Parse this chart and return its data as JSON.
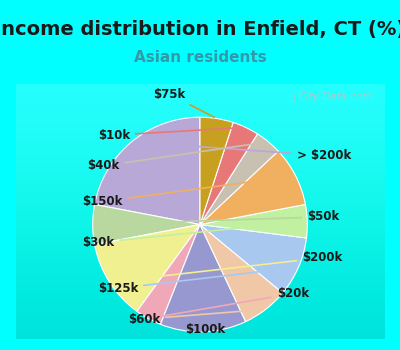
{
  "title": "Income distribution in Enfield, CT (%)",
  "subtitle": "Asian residents",
  "title_fontsize": 14,
  "subtitle_fontsize": 11,
  "title_color": "#1a1a1a",
  "subtitle_color": "#3399AA",
  "background_color": "#00FFFF",
  "chart_bg_start": "#E0F5EE",
  "chart_bg_end": "#F5FAF8",
  "watermark": "City-Data.com",
  "labels": [
    "> $200k",
    "$50k",
    "$200k",
    "$20k",
    "$100k",
    "$60k",
    "$125k",
    "$30k",
    "$150k",
    "$40k",
    "$10k",
    "$75k"
  ],
  "sizes": [
    22,
    6,
    12,
    4,
    13,
    7,
    9,
    5,
    9,
    4,
    4,
    5
  ],
  "colors": [
    "#B8A8D8",
    "#B8D8A0",
    "#F0F090",
    "#F0A8B8",
    "#9898D0",
    "#F0C8A8",
    "#A8C8F0",
    "#C0F0A0",
    "#F0B060",
    "#C8C0B0",
    "#E87878",
    "#C8A020"
  ],
  "label_fontsize": 8.5,
  "label_color": "#1a1a1a"
}
